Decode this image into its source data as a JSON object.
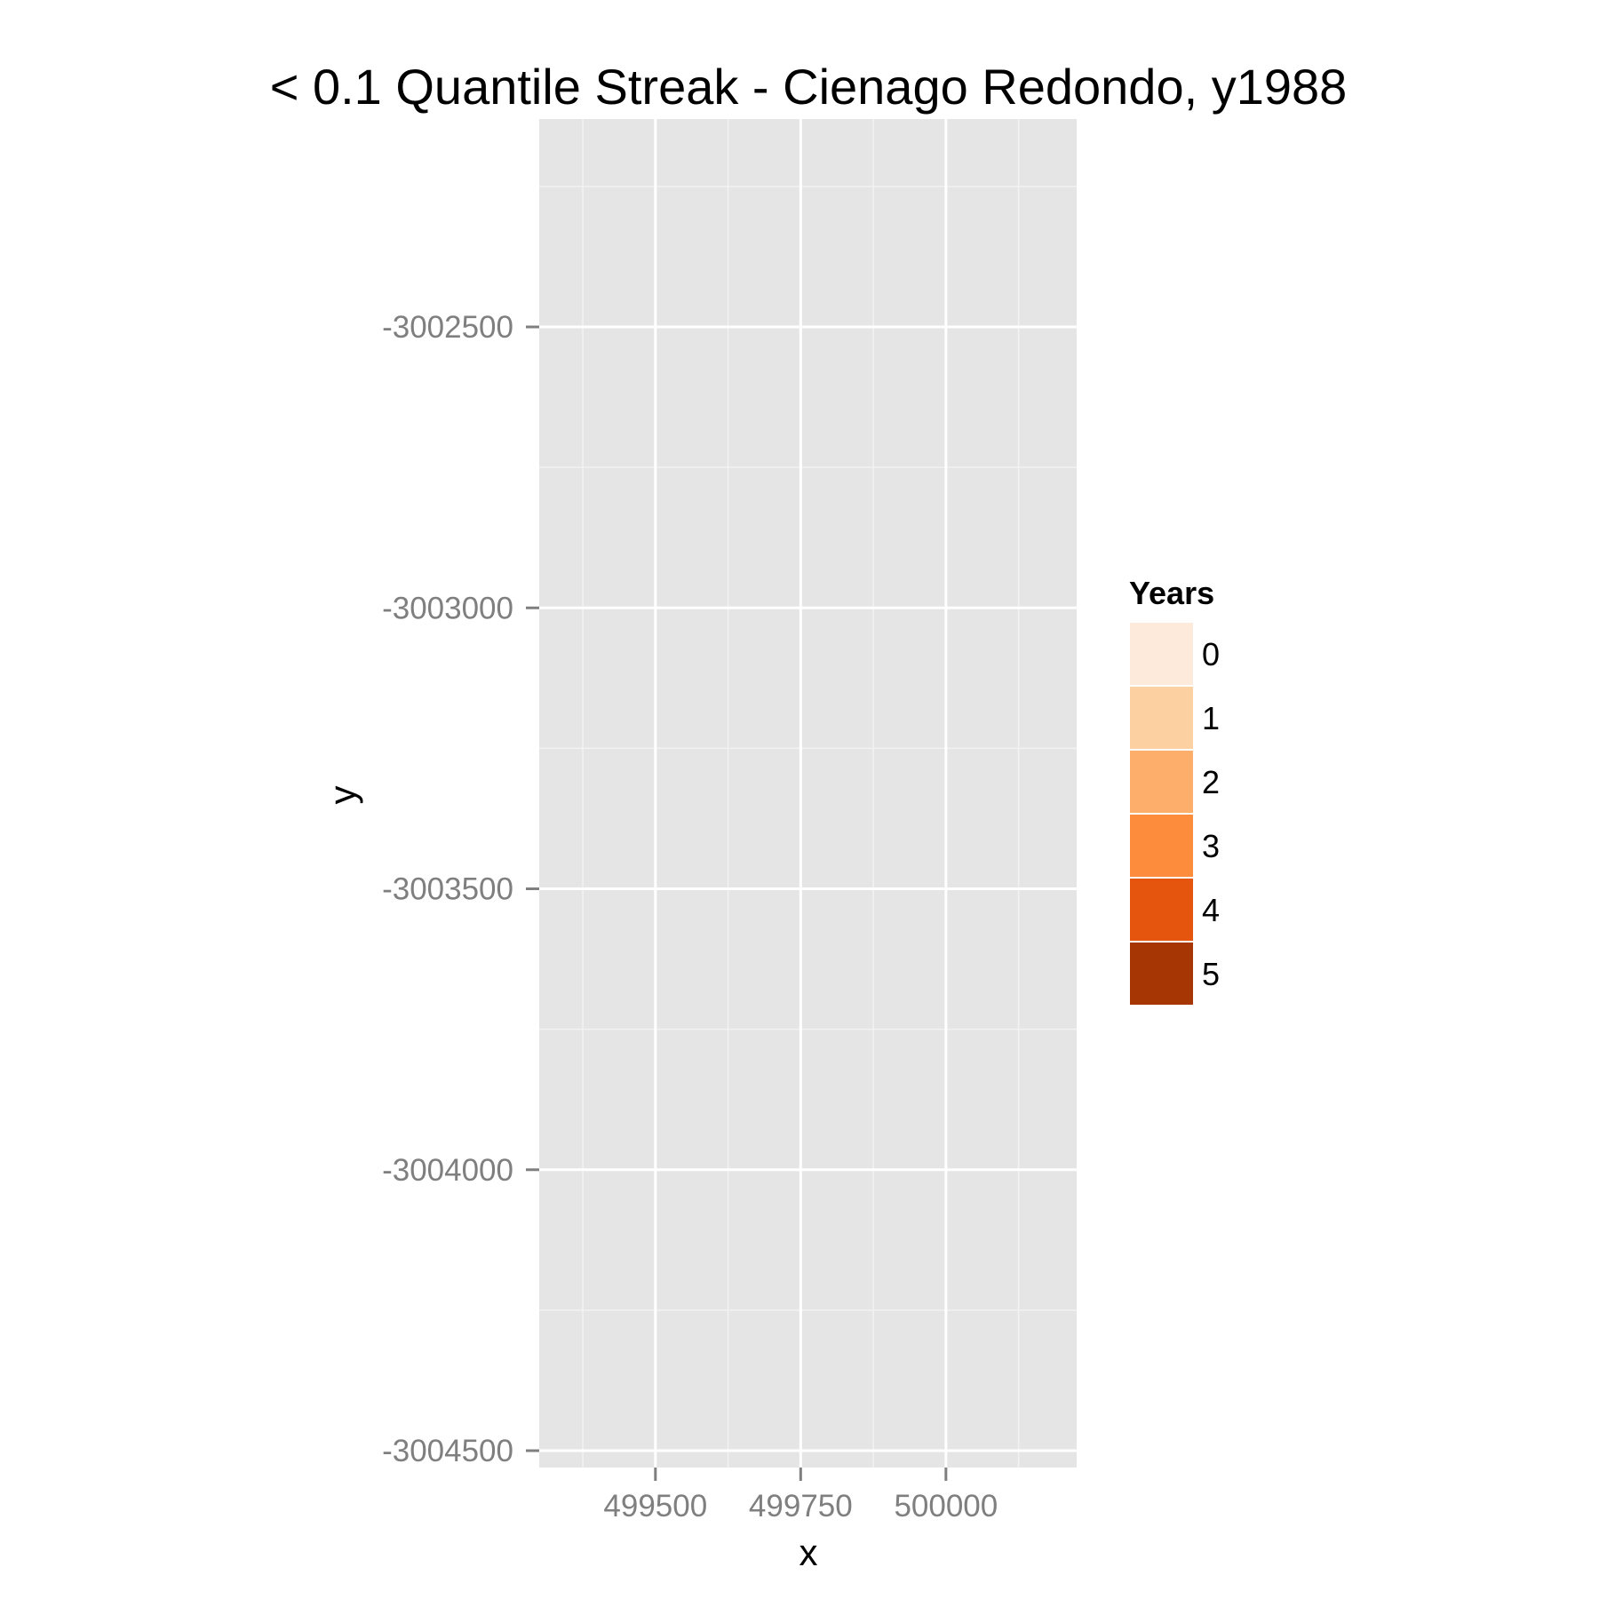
{
  "chart_data": {
    "type": "heatmap",
    "title": "< 0.1 Quantile Streak - Cienago Redondo, y1988",
    "xlabel": "x",
    "ylabel": "y",
    "xlim": [
      499300,
      500225
    ],
    "ylim": [
      -3004530,
      -3002130
    ],
    "x_ticks": [
      499500,
      499750,
      500000
    ],
    "x_tick_labels": [
      "499500",
      "499750",
      "500000"
    ],
    "y_ticks": [
      -3002500,
      -3003000,
      -3003500,
      -3004000,
      -3004500
    ],
    "y_tick_labels": [
      "-3002500",
      "-3003000",
      "-3003500",
      "-3004000",
      "-3004500"
    ],
    "grid": true,
    "panel_background": "#e5e5e5",
    "legend": {
      "title": "Years",
      "position": "right",
      "entries": [
        {
          "label": "0",
          "color": "#feeadb"
        },
        {
          "label": "1",
          "color": "#fdd0a2"
        },
        {
          "label": "2",
          "color": "#fdae6b"
        },
        {
          "label": "3",
          "color": "#fd8d3c"
        },
        {
          "label": "4",
          "color": "#e6550d"
        },
        {
          "label": "5",
          "color": "#a63603"
        }
      ]
    },
    "values": []
  }
}
